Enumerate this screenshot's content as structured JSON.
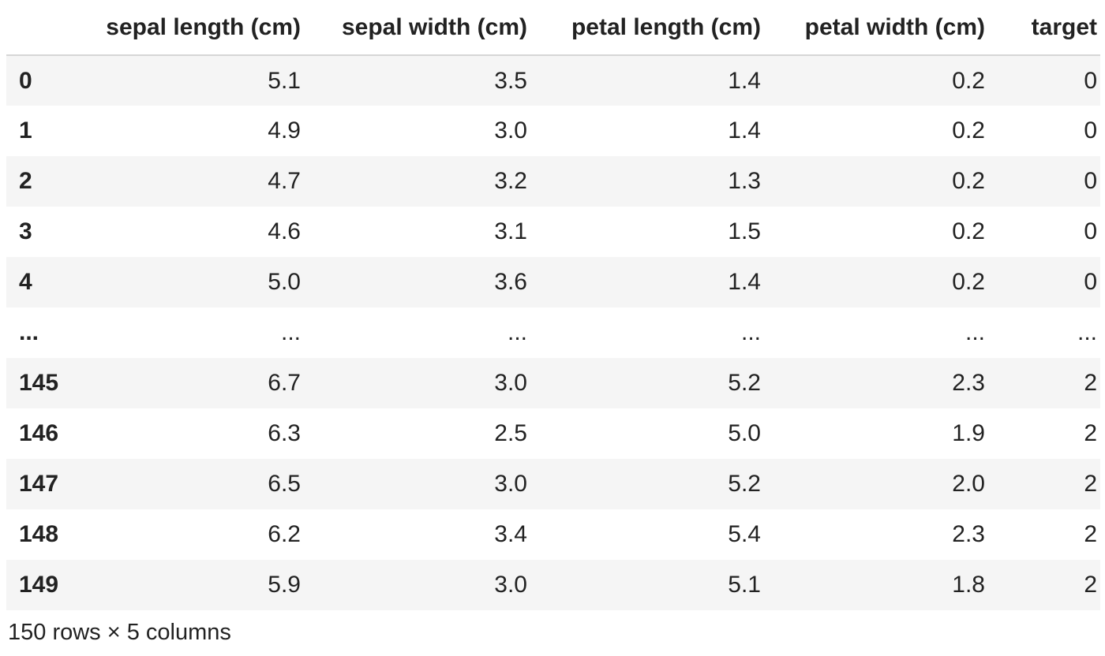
{
  "dataframe": {
    "columns": [
      "sepal length (cm)",
      "sepal width (cm)",
      "petal length (cm)",
      "petal width (cm)",
      "target"
    ],
    "rows": [
      {
        "index": "0",
        "values": [
          "5.1",
          "3.5",
          "1.4",
          "0.2",
          "0"
        ]
      },
      {
        "index": "1",
        "values": [
          "4.9",
          "3.0",
          "1.4",
          "0.2",
          "0"
        ]
      },
      {
        "index": "2",
        "values": [
          "4.7",
          "3.2",
          "1.3",
          "0.2",
          "0"
        ]
      },
      {
        "index": "3",
        "values": [
          "4.6",
          "3.1",
          "1.5",
          "0.2",
          "0"
        ]
      },
      {
        "index": "4",
        "values": [
          "5.0",
          "3.6",
          "1.4",
          "0.2",
          "0"
        ]
      },
      {
        "index": "...",
        "values": [
          "...",
          "...",
          "...",
          "...",
          "..."
        ]
      },
      {
        "index": "145",
        "values": [
          "6.7",
          "3.0",
          "5.2",
          "2.3",
          "2"
        ]
      },
      {
        "index": "146",
        "values": [
          "6.3",
          "2.5",
          "5.0",
          "1.9",
          "2"
        ]
      },
      {
        "index": "147",
        "values": [
          "6.5",
          "3.0",
          "5.2",
          "2.0",
          "2"
        ]
      },
      {
        "index": "148",
        "values": [
          "6.2",
          "3.4",
          "5.4",
          "2.3",
          "2"
        ]
      },
      {
        "index": "149",
        "values": [
          "5.9",
          "3.0",
          "5.1",
          "1.8",
          "2"
        ]
      }
    ],
    "shape_text": "150 rows × 5 columns"
  },
  "colors": {
    "stripe": "#f5f5f5",
    "header_border": "#d6d6d6",
    "text": "#222222"
  }
}
